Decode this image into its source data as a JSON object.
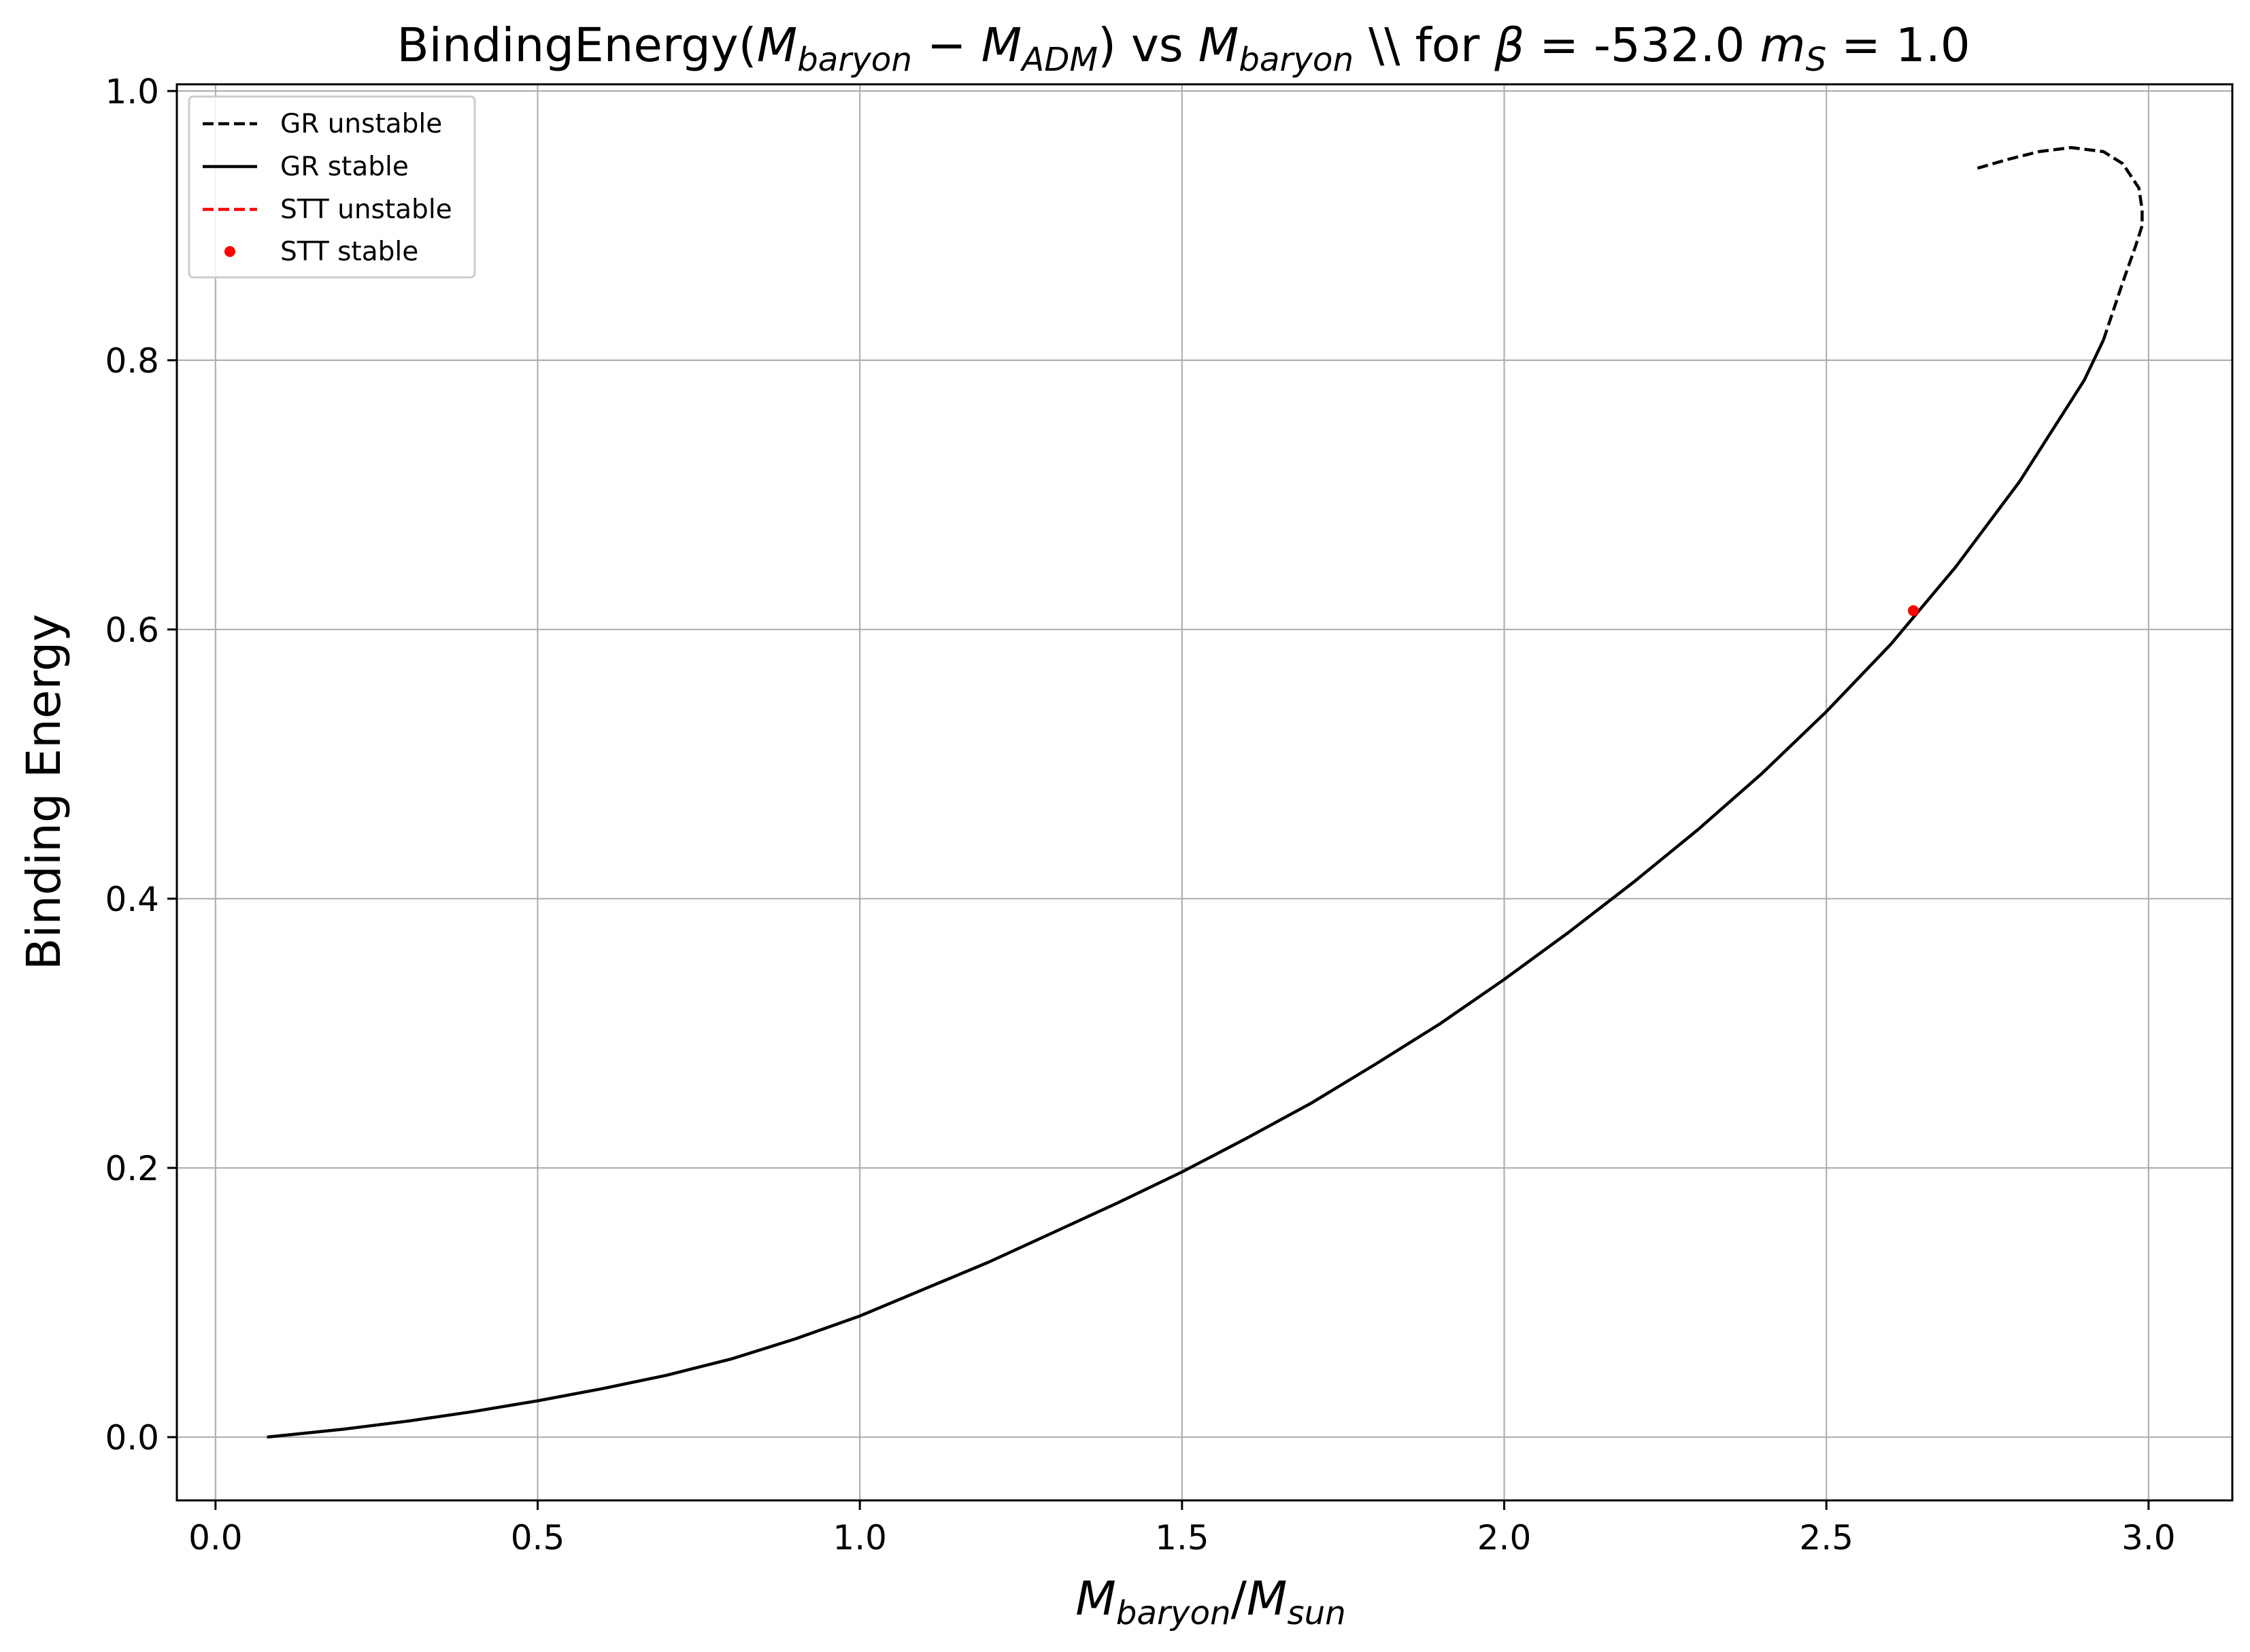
{
  "chart_data": {
    "type": "line",
    "title": {
      "prefix": "BindingEnergy(",
      "m1": "M",
      "m1_sub": "baryon",
      "minus": " − ",
      "m2": "M",
      "m2_sub": "ADM",
      "mid": ") vs ",
      "m3": "M",
      "m3_sub": "baryon",
      "for": " \\\\ for ",
      "beta": "β",
      "beta_eq": " = -532.0 ",
      "ms": "m",
      "ms_sub": "S",
      "ms_eq": " = 1.0"
    },
    "xlabel": {
      "m": "M",
      "m_sub": "baryon",
      "slash": "/",
      "s": "M",
      "s_sub": "sun"
    },
    "ylabel": "Binding Energy",
    "xlim": [
      -0.06,
      3.13
    ],
    "ylim": [
      -0.047,
      1.005
    ],
    "xticks": [
      0.0,
      0.5,
      1.0,
      1.5,
      2.0,
      2.5,
      3.0
    ],
    "xtick_labels": [
      "0.0",
      "0.5",
      "1.0",
      "1.5",
      "2.0",
      "2.5",
      "3.0"
    ],
    "yticks": [
      0.0,
      0.2,
      0.4,
      0.6,
      0.8,
      1.0
    ],
    "ytick_labels": [
      "0.0",
      "0.2",
      "0.4",
      "0.6",
      "0.8",
      "1.0"
    ],
    "grid": true,
    "legend_position": "upper-left",
    "legend": [
      {
        "label": "GR unstable",
        "style": "dashed",
        "color": "#000000"
      },
      {
        "label": "GR stable",
        "style": "solid",
        "color": "#000000"
      },
      {
        "label": "STT unstable",
        "style": "dashed",
        "color": "#ff0000"
      },
      {
        "label": "STT stable",
        "style": "dot",
        "color": "#ff0000"
      }
    ],
    "series": [
      {
        "name": "GR stable",
        "style": "solid",
        "color": "#000000",
        "x": [
          0.08,
          0.2,
          0.3,
          0.4,
          0.5,
          0.6,
          0.7,
          0.8,
          0.9,
          1.0,
          1.1,
          1.2,
          1.3,
          1.4,
          1.5,
          1.6,
          1.7,
          1.8,
          1.9,
          2.0,
          2.1,
          2.2,
          2.3,
          2.4,
          2.5,
          2.6,
          2.7,
          2.8,
          2.9,
          2.93
        ],
        "y": [
          0.0,
          0.006,
          0.012,
          0.019,
          0.027,
          0.036,
          0.046,
          0.058,
          0.073,
          0.09,
          0.11,
          0.13,
          0.152,
          0.174,
          0.197,
          0.222,
          0.248,
          0.277,
          0.307,
          0.34,
          0.375,
          0.412,
          0.451,
          0.493,
          0.539,
          0.589,
          0.646,
          0.71,
          0.785,
          0.815
        ]
      },
      {
        "name": "GR unstable",
        "style": "dashed",
        "color": "#000000",
        "x": [
          2.93,
          2.96,
          2.98,
          2.99,
          2.99,
          2.985,
          2.96,
          2.93,
          2.88,
          2.83,
          2.78,
          2.73
        ],
        "y": [
          0.815,
          0.858,
          0.885,
          0.9,
          0.912,
          0.928,
          0.946,
          0.955,
          0.958,
          0.955,
          0.949,
          0.942
        ]
      },
      {
        "name": "STT stable",
        "style": "dot",
        "color": "#ff0000",
        "x": [
          2.635
        ],
        "y": [
          0.614
        ]
      }
    ]
  }
}
